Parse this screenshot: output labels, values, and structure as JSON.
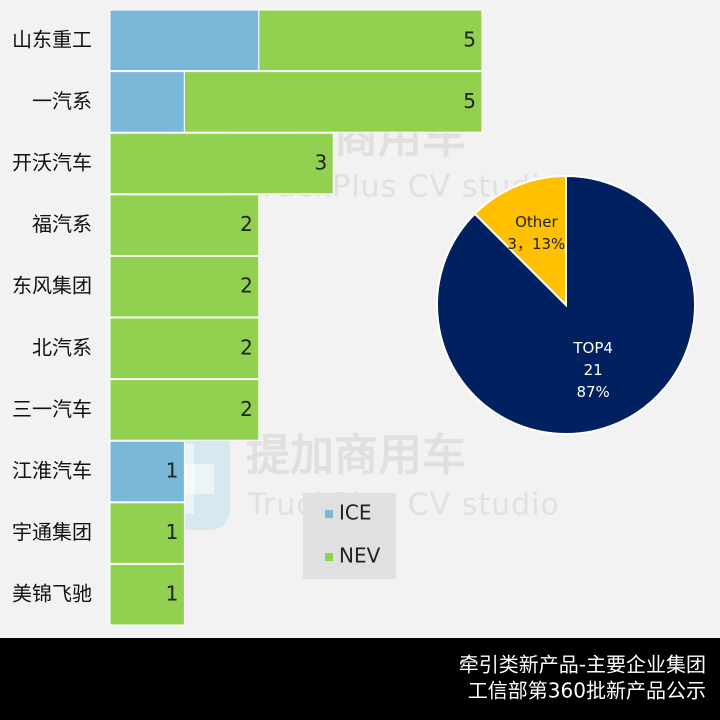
{
  "watermark": {
    "title": "提加商用车",
    "subtitle": "TruckPlus CV studio"
  },
  "footer": {
    "lines": [
      "牵引类新产品-主要企业集团",
      "工信部第360批新产品公示"
    ]
  },
  "chart_data": [
    {
      "type": "stacked-bar-horizontal",
      "categories": [
        "山东重工",
        "一汽系",
        "开沃汽车",
        "福汽系",
        "东风集团",
        "北汽系",
        "三一汽车",
        "江淮汽车",
        "宇通集团",
        "美锦飞驰"
      ],
      "series": [
        {
          "name": "ICE",
          "color": "#7ab8d9",
          "values": [
            2,
            1,
            0,
            0,
            0,
            0,
            0,
            1,
            0,
            0
          ]
        },
        {
          "name": "NEV",
          "color": "#92d050",
          "values": [
            3,
            4,
            3,
            2,
            2,
            2,
            2,
            0,
            1,
            1
          ]
        }
      ],
      "total_labels": [
        5,
        5,
        3,
        2,
        2,
        2,
        2,
        1,
        1,
        1
      ],
      "xlim": [
        0,
        5
      ]
    },
    {
      "type": "pie",
      "categories": [
        "TOP4",
        "Other"
      ],
      "values": [
        21,
        3
      ],
      "colors": [
        "#002060",
        "#ffc000"
      ],
      "label_colors": [
        "#ffffff",
        "#222222"
      ],
      "value_labels": [
        [
          "21",
          "87%"
        ],
        [
          "3，13%"
        ]
      ]
    }
  ]
}
